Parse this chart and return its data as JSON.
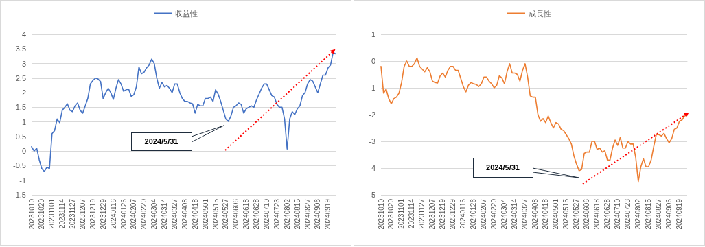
{
  "chart_data": [
    {
      "type": "line",
      "categories": [
        "20231010",
        null,
        null,
        null,
        "20231020",
        null,
        null,
        null,
        "20231101",
        null,
        null,
        null,
        "20231114",
        null,
        null,
        null,
        "20231127",
        null,
        null,
        null,
        "20231207",
        null,
        null,
        null,
        "20231219",
        null,
        null,
        null,
        "20231229",
        null,
        null,
        null,
        "20240116",
        null,
        null,
        null,
        "20240126",
        null,
        null,
        null,
        "20240207",
        null,
        null,
        null,
        "20240220",
        null,
        null,
        null,
        "20240304",
        null,
        null,
        null,
        "20240314",
        null,
        null,
        null,
        "20240327",
        null,
        null,
        null,
        "20240408",
        null,
        null,
        null,
        "20240418",
        null,
        null,
        null,
        "20240501",
        null,
        null,
        null,
        "20240515",
        null,
        null,
        null,
        "20240527",
        null,
        null,
        null,
        "20240606",
        null,
        null,
        null,
        "20240618",
        null,
        null,
        null,
        "20240628",
        null,
        null,
        null,
        "20240710",
        null,
        null,
        null,
        "20240723",
        null,
        null,
        null,
        "20240802",
        null,
        null,
        null,
        "20240815",
        null,
        null,
        null,
        "20240827",
        null,
        null,
        null,
        "20240906",
        null,
        null,
        null,
        "20240919",
        null,
        null,
        null
      ],
      "series": [
        {
          "name": "収益性",
          "color": "#4472c4",
          "values": [
            0.15,
            0.0,
            0.1,
            -0.3,
            -0.6,
            -0.7,
            -0.55,
            -0.6,
            0.6,
            0.7,
            1.1,
            0.97,
            1.4,
            1.5,
            1.62,
            1.4,
            1.35,
            1.55,
            1.65,
            1.4,
            1.3,
            1.55,
            1.8,
            2.3,
            2.42,
            2.5,
            2.47,
            2.38,
            1.8,
            2.0,
            2.15,
            2.0,
            1.77,
            2.15,
            2.45,
            2.3,
            2.05,
            2.1,
            2.12,
            1.87,
            1.93,
            2.2,
            2.88,
            2.65,
            2.7,
            2.85,
            2.95,
            3.15,
            3.0,
            2.5,
            2.15,
            2.35,
            2.2,
            2.25,
            2.15,
            2.0,
            2.3,
            2.3,
            2.0,
            1.8,
            1.7,
            1.7,
            1.65,
            1.62,
            1.3,
            1.6,
            1.55,
            1.55,
            1.8,
            1.8,
            1.85,
            1.7,
            2.1,
            1.95,
            1.7,
            1.4,
            1.1,
            1.02,
            1.2,
            1.5,
            1.55,
            1.65,
            1.6,
            1.3,
            1.45,
            1.5,
            1.55,
            1.5,
            1.75,
            1.95,
            2.15,
            2.3,
            2.3,
            2.1,
            1.9,
            1.85,
            1.6,
            1.5,
            1.5,
            1.1,
            0.07,
            1.1,
            1.35,
            1.25,
            1.45,
            1.55,
            1.9,
            2.0,
            2.3,
            2.45,
            2.4,
            2.2,
            2.0,
            2.3,
            2.6,
            2.6,
            2.85,
            2.95,
            3.38,
            3.33
          ]
        }
      ],
      "ylim": [
        -1.5,
        4
      ],
      "yticks": [
        -1.5,
        -1,
        -0.5,
        0,
        0.5,
        1,
        1.5,
        2,
        2.5,
        3,
        3.5,
        4
      ],
      "grid": "y",
      "legend": "top",
      "marker": "none",
      "line_style": "solid",
      "annotations": [
        "2024/5/31"
      ]
    },
    {
      "type": "line",
      "categories": [
        "20231010",
        null,
        null,
        null,
        "20231020",
        null,
        null,
        null,
        "20231101",
        null,
        null,
        null,
        "20231114",
        null,
        null,
        null,
        "20231127",
        null,
        null,
        null,
        "20231207",
        null,
        null,
        null,
        "20231219",
        null,
        null,
        null,
        "20231229",
        null,
        null,
        null,
        "20240116",
        null,
        null,
        null,
        "20240126",
        null,
        null,
        null,
        "20240207",
        null,
        null,
        null,
        "20240220",
        null,
        null,
        null,
        "20240304",
        null,
        null,
        null,
        "20240314",
        null,
        null,
        null,
        "20240327",
        null,
        null,
        null,
        "20240408",
        null,
        null,
        null,
        "20240418",
        null,
        null,
        null,
        "20240501",
        null,
        null,
        null,
        "20240515",
        null,
        null,
        null,
        "20240527",
        null,
        null,
        null,
        "20240606",
        null,
        null,
        null,
        "20240618",
        null,
        null,
        null,
        "20240628",
        null,
        null,
        null,
        "20240710",
        null,
        null,
        null,
        "20240723",
        null,
        null,
        null,
        "20240802",
        null,
        null,
        null,
        "20240815",
        null,
        null,
        null,
        "20240827",
        null,
        null,
        null,
        "20240906",
        null,
        null,
        null,
        "20240919",
        null,
        null,
        null
      ],
      "series": [
        {
          "name": "成長性",
          "color": "#ed7d31",
          "values": [
            -0.2,
            -1.2,
            -1.05,
            -1.4,
            -1.6,
            -1.4,
            -1.35,
            -1.2,
            -0.8,
            -0.2,
            0.0,
            -0.2,
            -0.2,
            -0.1,
            0.12,
            -0.2,
            -0.3,
            -0.4,
            -0.25,
            -0.4,
            -0.75,
            -0.8,
            -0.82,
            -0.55,
            -0.45,
            -0.6,
            -0.35,
            -0.2,
            -0.2,
            -0.35,
            -0.35,
            -0.65,
            -0.95,
            -1.15,
            -0.9,
            -0.8,
            -0.85,
            -0.87,
            -0.95,
            -0.85,
            -0.6,
            -0.6,
            -0.75,
            -0.85,
            -1.0,
            -0.9,
            -0.55,
            -0.63,
            -0.85,
            -0.4,
            -0.1,
            -0.45,
            -0.45,
            -0.5,
            -0.75,
            -0.35,
            -0.1,
            -0.6,
            -1.3,
            -1.35,
            -1.35,
            -2.0,
            -2.25,
            -2.15,
            -2.3,
            -2.05,
            -2.3,
            -2.5,
            -2.3,
            -2.35,
            -2.55,
            -2.6,
            -2.75,
            -2.9,
            -3.1,
            -3.55,
            -3.85,
            -4.1,
            -4.05,
            -3.45,
            -3.4,
            -3.4,
            -3.0,
            -3.0,
            -3.3,
            -3.25,
            -3.4,
            -3.35,
            -3.7,
            -3.7,
            -3.25,
            -2.95,
            -3.15,
            -2.85,
            -3.25,
            -3.25,
            -3.0,
            -3.1,
            -3.1,
            -3.6,
            -4.5,
            -3.95,
            -3.65,
            -3.95,
            -3.95,
            -3.7,
            -3.2,
            -2.75,
            -2.75,
            -2.8,
            -2.7,
            -2.9,
            -3.05,
            -2.9,
            -2.55,
            -2.5,
            -2.25,
            -2.2,
            -2.05,
            -2.02
          ]
        }
      ],
      "ylim": [
        -5,
        1
      ],
      "yticks": [
        -5,
        -4,
        -3,
        -2,
        -1,
        0,
        1
      ],
      "grid": "y",
      "legend": "top",
      "marker": "none",
      "line_style": "solid",
      "annotations": [
        "2024/5/31"
      ]
    }
  ]
}
